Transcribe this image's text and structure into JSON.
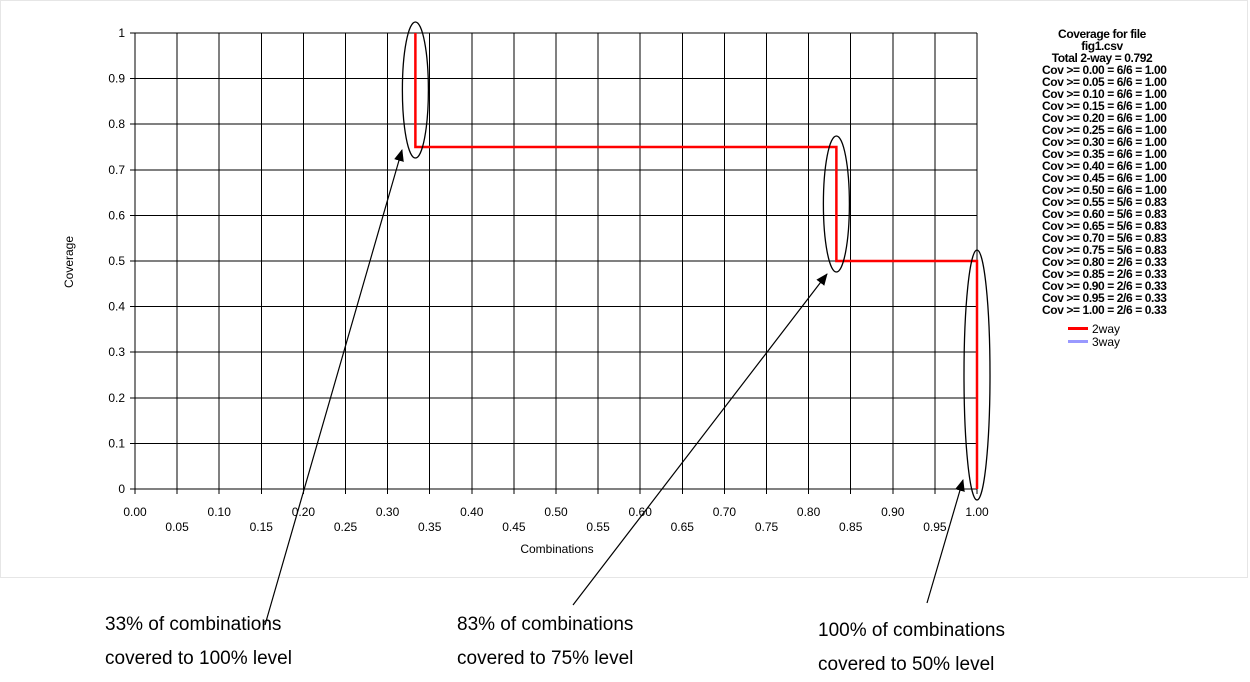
{
  "chart_data": {
    "type": "line",
    "xlabel": "Combinations",
    "ylabel": "Coverage",
    "xlim": [
      0,
      1
    ],
    "ylim": [
      0,
      1
    ],
    "x_ticks_row1": [
      "0.00",
      "0.10",
      "0.20",
      "0.30",
      "0.40",
      "0.50",
      "0.60",
      "0.70",
      "0.80",
      "0.90",
      "1.00"
    ],
    "x_ticks_row2": [
      "0.05",
      "0.15",
      "0.25",
      "0.35",
      "0.45",
      "0.55",
      "0.65",
      "0.75",
      "0.85",
      "0.95"
    ],
    "y_ticks": [
      "0",
      "0.1",
      "0.2",
      "0.3",
      "0.4",
      "0.5",
      "0.6",
      "0.7",
      "0.8",
      "0.9",
      "1"
    ],
    "grid": true,
    "legend_position": "right",
    "series": [
      {
        "name": "2way",
        "color": "#ff0000",
        "points": [
          [
            0.333,
            1.0
          ],
          [
            0.333,
            0.75
          ],
          [
            0.833,
            0.75
          ],
          [
            0.833,
            0.5
          ],
          [
            1.0,
            0.5
          ],
          [
            1.0,
            0.0
          ]
        ]
      },
      {
        "name": "3way",
        "color": "#9999ff",
        "points": []
      }
    ],
    "legend_lines": [
      "Coverage for file",
      "fig1.csv",
      "Total 2-way = 0.792",
      "Cov >= 0.00 = 6/6 = 1.00",
      "Cov >= 0.05 = 6/6 = 1.00",
      "Cov >= 0.10 = 6/6 = 1.00",
      "Cov >= 0.15 = 6/6 = 1.00",
      "Cov >= 0.20 = 6/6 = 1.00",
      "Cov >= 0.25 = 6/6 = 1.00",
      "Cov >= 0.30 = 6/6 = 1.00",
      "Cov >= 0.35 = 6/6 = 1.00",
      "Cov >= 0.40 = 6/6 = 1.00",
      "Cov >= 0.45 = 6/6 = 1.00",
      "Cov >= 0.50 = 6/6 = 1.00",
      "Cov >= 0.55 = 5/6 = 0.83",
      "Cov >= 0.60 = 5/6 = 0.83",
      "Cov >= 0.65 = 5/6 = 0.83",
      "Cov >= 0.70 = 5/6 = 0.83",
      "Cov >= 0.75 = 5/6 = 0.83",
      "Cov >= 0.80 = 2/6 = 0.33",
      "Cov >= 0.85 = 2/6 = 0.33",
      "Cov >= 0.90 = 2/6 = 0.33",
      "Cov >= 0.95 = 2/6 = 0.33",
      "Cov >= 1.00 = 2/6 = 0.33"
    ],
    "annotations": [
      {
        "line1": "33% of combinations",
        "line2": "covered to 100% level",
        "target": [
          0.333,
          0.875
        ]
      },
      {
        "line1": "83% of combinations",
        "line2": "covered to 75% level",
        "target": [
          0.833,
          0.625
        ]
      },
      {
        "line1": "100% of combinations",
        "line2": "covered to 50% level",
        "target": [
          1.0,
          0.25
        ]
      }
    ]
  }
}
